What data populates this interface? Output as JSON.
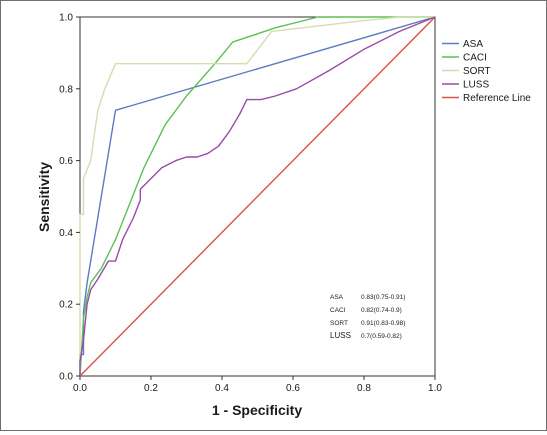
{
  "chart_data": {
    "type": "line",
    "title": "",
    "xlabel": "1 - Specificity",
    "ylabel": "Sensitivity",
    "xlim": [
      0,
      1
    ],
    "ylim": [
      0,
      1
    ],
    "x_ticks": [
      "0.0",
      "0.2",
      "0.4",
      "0.6",
      "0.8",
      "1.0"
    ],
    "y_ticks": [
      "0.0",
      "0.2",
      "0.4",
      "0.6",
      "0.8",
      "1.0"
    ],
    "grid": false,
    "legend_position": "right",
    "series": [
      {
        "name": "ASA",
        "color": "#5b7bc2",
        "points": [
          [
            0,
            0
          ],
          [
            0,
            0.06
          ],
          [
            0.01,
            0.06
          ],
          [
            0.01,
            0.18
          ],
          [
            0.02,
            0.26
          ],
          [
            0.1,
            0.74
          ],
          [
            1,
            1
          ]
        ]
      },
      {
        "name": "CACI",
        "color": "#5cc055",
        "points": [
          [
            0,
            0
          ],
          [
            0.01,
            0.16
          ],
          [
            0.02,
            0.22
          ],
          [
            0.03,
            0.26
          ],
          [
            0.06,
            0.3
          ],
          [
            0.1,
            0.38
          ],
          [
            0.14,
            0.48
          ],
          [
            0.18,
            0.58
          ],
          [
            0.24,
            0.7
          ],
          [
            0.3,
            0.78
          ],
          [
            0.38,
            0.87
          ],
          [
            0.43,
            0.93
          ],
          [
            0.55,
            0.97
          ],
          [
            0.67,
            1
          ],
          [
            1,
            1
          ]
        ]
      },
      {
        "name": "SORT",
        "color": "#d4ddb0",
        "points": [
          [
            0,
            0
          ],
          [
            0,
            0.45
          ],
          [
            0.01,
            0.45
          ],
          [
            0.01,
            0.55
          ],
          [
            0.03,
            0.6
          ],
          [
            0.05,
            0.74
          ],
          [
            0.07,
            0.8
          ],
          [
            0.1,
            0.87
          ],
          [
            0.47,
            0.87
          ],
          [
            0.54,
            0.96
          ],
          [
            0.8,
            0.99
          ],
          [
            0.9,
            1
          ],
          [
            1,
            1
          ]
        ]
      },
      {
        "name": "LUSS",
        "color": "#9a4aa8",
        "points": [
          [
            0,
            0
          ],
          [
            0,
            0.04
          ],
          [
            0.01,
            0.1
          ],
          [
            0.02,
            0.2
          ],
          [
            0.03,
            0.24
          ],
          [
            0.05,
            0.27
          ],
          [
            0.08,
            0.32
          ],
          [
            0.1,
            0.32
          ],
          [
            0.12,
            0.38
          ],
          [
            0.15,
            0.44
          ],
          [
            0.17,
            0.49
          ],
          [
            0.17,
            0.52
          ],
          [
            0.2,
            0.55
          ],
          [
            0.23,
            0.58
          ],
          [
            0.27,
            0.6
          ],
          [
            0.3,
            0.61
          ],
          [
            0.33,
            0.61
          ],
          [
            0.36,
            0.62
          ],
          [
            0.39,
            0.64
          ],
          [
            0.42,
            0.68
          ],
          [
            0.45,
            0.73
          ],
          [
            0.47,
            0.77
          ],
          [
            0.51,
            0.77
          ],
          [
            0.55,
            0.78
          ],
          [
            0.61,
            0.8
          ],
          [
            0.7,
            0.85
          ],
          [
            0.8,
            0.91
          ],
          [
            0.9,
            0.96
          ],
          [
            1,
            1
          ]
        ]
      },
      {
        "name": "Reference Line",
        "color": "#d9534a",
        "points": [
          [
            0,
            0
          ],
          [
            1,
            1
          ]
        ]
      }
    ],
    "annotations": [
      {
        "label": "ASA",
        "value": "0.83(0.75-0.91)"
      },
      {
        "label": "CACI",
        "value": "0.82(0.74-0.9)"
      },
      {
        "label": "SORT",
        "value": "0.91(0.83-0.98)"
      },
      {
        "label": "LUSS",
        "value": "0.7(0.59-0.82)"
      }
    ]
  }
}
